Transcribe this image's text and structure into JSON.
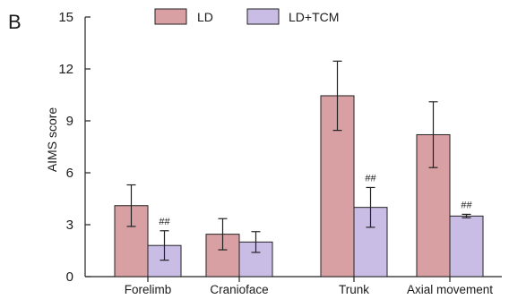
{
  "chart_data": {
    "type": "bar",
    "panel_label": "B",
    "title": "",
    "xlabel": "",
    "ylabel": "AIMS score",
    "ylim": [
      0,
      15
    ],
    "yticks": [
      "0",
      "3",
      "6",
      "9",
      "12",
      "15"
    ],
    "categories": [
      "Forelimb",
      "Cranioface",
      "Trunk",
      "Axial movement"
    ],
    "series": [
      {
        "name": "LD",
        "color": "#d9a0a3",
        "values": [
          4.1,
          2.45,
          10.45,
          8.2
        ],
        "errors": [
          1.2,
          0.9,
          2.0,
          1.9
        ]
      },
      {
        "name": "LD+TCM",
        "color": "#c9bde6",
        "values": [
          1.8,
          2.0,
          4.0,
          3.5
        ],
        "errors": [
          0.85,
          0.6,
          1.15,
          0.1
        ],
        "annotations": [
          "##",
          "",
          "##",
          "##"
        ]
      }
    ],
    "legend_position": "top",
    "grid": false
  }
}
